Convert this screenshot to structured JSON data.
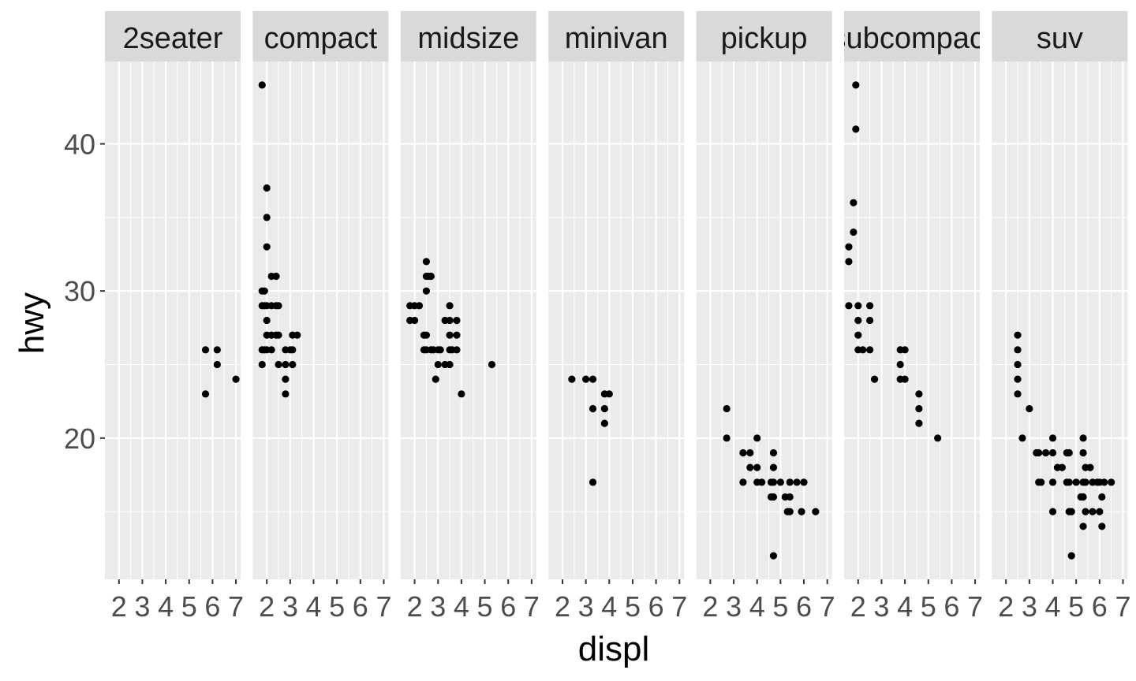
{
  "chart_data": {
    "type": "scatter",
    "xlabel": "displ",
    "ylabel": "hwy",
    "xlim": [
      1.4,
      7.2
    ],
    "ylim": [
      10.4,
      45.6
    ],
    "x_ticks": [
      2,
      3,
      4,
      5,
      6,
      7
    ],
    "y_ticks": [
      20,
      30,
      40
    ],
    "grid": true,
    "facets": [
      {
        "label": "2seater",
        "points": [
          [
            5.7,
            26
          ],
          [
            5.7,
            23
          ],
          [
            6.2,
            26
          ],
          [
            6.2,
            25
          ],
          [
            7.0,
            24
          ]
        ]
      },
      {
        "label": "compact",
        "points": [
          [
            1.8,
            44
          ],
          [
            1.8,
            29
          ],
          [
            1.8,
            30
          ],
          [
            1.8,
            26
          ],
          [
            1.9,
            26
          ],
          [
            1.9,
            29
          ],
          [
            1.9,
            30
          ],
          [
            2.0,
            29
          ],
          [
            2.0,
            28
          ],
          [
            2.0,
            27
          ],
          [
            2.0,
            26
          ],
          [
            2.0,
            33
          ],
          [
            2.0,
            35
          ],
          [
            2.0,
            37
          ],
          [
            2.2,
            31
          ],
          [
            2.2,
            29
          ],
          [
            2.2,
            27
          ],
          [
            2.2,
            26
          ],
          [
            2.4,
            31
          ],
          [
            2.4,
            29
          ],
          [
            2.4,
            27
          ],
          [
            2.5,
            29
          ],
          [
            2.5,
            27
          ],
          [
            2.5,
            25
          ],
          [
            2.8,
            26
          ],
          [
            2.8,
            25
          ],
          [
            2.8,
            24
          ],
          [
            2.8,
            23
          ],
          [
            3.0,
            26
          ],
          [
            3.1,
            27
          ],
          [
            3.1,
            26
          ],
          [
            3.1,
            25
          ],
          [
            3.3,
            27
          ],
          [
            1.8,
            25
          ]
        ]
      },
      {
        "label": "midsize",
        "points": [
          [
            1.8,
            29
          ],
          [
            1.8,
            28
          ],
          [
            2.0,
            29
          ],
          [
            2.0,
            28
          ],
          [
            2.2,
            29
          ],
          [
            2.4,
            27
          ],
          [
            2.4,
            26
          ],
          [
            2.5,
            27
          ],
          [
            2.5,
            26
          ],
          [
            2.5,
            31
          ],
          [
            2.5,
            30
          ],
          [
            2.5,
            32
          ],
          [
            2.6,
            31
          ],
          [
            2.7,
            31
          ],
          [
            2.7,
            26
          ],
          [
            2.8,
            26
          ],
          [
            2.9,
            24
          ],
          [
            3.0,
            26
          ],
          [
            3.0,
            25
          ],
          [
            3.1,
            26
          ],
          [
            3.3,
            25
          ],
          [
            3.3,
            28
          ],
          [
            3.5,
            28
          ],
          [
            3.5,
            29
          ],
          [
            3.5,
            27
          ],
          [
            3.5,
            26
          ],
          [
            3.5,
            25
          ],
          [
            3.6,
            26
          ],
          [
            3.8,
            28
          ],
          [
            3.8,
            27
          ],
          [
            3.8,
            26
          ],
          [
            4.0,
            23
          ],
          [
            5.3,
            25
          ]
        ]
      },
      {
        "label": "minivan",
        "points": [
          [
            2.4,
            24
          ],
          [
            3.0,
            24
          ],
          [
            3.3,
            24
          ],
          [
            3.3,
            22
          ],
          [
            3.3,
            17
          ],
          [
            3.8,
            23
          ],
          [
            3.8,
            22
          ],
          [
            3.8,
            21
          ],
          [
            4.0,
            23
          ]
        ]
      },
      {
        "label": "pickup",
        "points": [
          [
            2.7,
            22
          ],
          [
            2.7,
            20
          ],
          [
            3.4,
            19
          ],
          [
            3.4,
            17
          ],
          [
            3.7,
            19
          ],
          [
            3.7,
            18
          ],
          [
            4.0,
            20
          ],
          [
            4.0,
            18
          ],
          [
            4.0,
            17
          ],
          [
            4.2,
            17
          ],
          [
            4.6,
            17
          ],
          [
            4.7,
            19
          ],
          [
            4.7,
            17
          ],
          [
            4.7,
            16
          ],
          [
            4.7,
            12
          ],
          [
            5.2,
            16
          ],
          [
            5.4,
            17
          ],
          [
            5.4,
            16
          ],
          [
            5.4,
            15
          ],
          [
            5.7,
            17
          ],
          [
            5.9,
            15
          ],
          [
            4.6,
            16
          ],
          [
            4.7,
            18
          ],
          [
            5.0,
            17
          ],
          [
            5.3,
            15
          ],
          [
            6.0,
            17
          ],
          [
            6.5,
            15
          ]
        ]
      },
      {
        "label": "subcompact",
        "points": [
          [
            1.6,
            33
          ],
          [
            1.6,
            32
          ],
          [
            1.6,
            29
          ],
          [
            1.8,
            34
          ],
          [
            1.8,
            36
          ],
          [
            1.9,
            41
          ],
          [
            1.9,
            44
          ],
          [
            2.0,
            29
          ],
          [
            2.0,
            27
          ],
          [
            2.0,
            26
          ],
          [
            2.5,
            29
          ],
          [
            2.5,
            28
          ],
          [
            2.5,
            26
          ],
          [
            2.0,
            28
          ],
          [
            2.2,
            26
          ],
          [
            2.7,
            24
          ],
          [
            3.8,
            26
          ],
          [
            3.8,
            25
          ],
          [
            4.0,
            26
          ],
          [
            4.0,
            24
          ],
          [
            4.6,
            23
          ],
          [
            4.6,
            22
          ],
          [
            4.6,
            21
          ],
          [
            5.4,
            20
          ],
          [
            3.8,
            24
          ]
        ]
      },
      {
        "label": "suv",
        "points": [
          [
            2.5,
            27
          ],
          [
            2.5,
            26
          ],
          [
            2.5,
            25
          ],
          [
            2.5,
            24
          ],
          [
            2.5,
            23
          ],
          [
            2.7,
            20
          ],
          [
            3.0,
            22
          ],
          [
            3.3,
            19
          ],
          [
            3.4,
            19
          ],
          [
            3.4,
            17
          ],
          [
            3.5,
            17
          ],
          [
            3.7,
            19
          ],
          [
            4.0,
            20
          ],
          [
            4.0,
            19
          ],
          [
            4.0,
            17
          ],
          [
            4.0,
            15
          ],
          [
            4.2,
            18
          ],
          [
            4.4,
            18
          ],
          [
            4.6,
            19
          ],
          [
            4.7,
            19
          ],
          [
            4.7,
            17
          ],
          [
            4.7,
            15
          ],
          [
            4.6,
            17
          ],
          [
            4.8,
            15
          ],
          [
            4.8,
            12
          ],
          [
            5.0,
            17
          ],
          [
            5.2,
            16
          ],
          [
            5.3,
            20
          ],
          [
            5.3,
            19
          ],
          [
            5.3,
            17
          ],
          [
            5.3,
            16
          ],
          [
            5.3,
            14
          ],
          [
            5.4,
            18
          ],
          [
            5.4,
            17
          ],
          [
            5.6,
            18
          ],
          [
            5.7,
            17
          ],
          [
            5.7,
            15
          ],
          [
            5.9,
            17
          ],
          [
            6.0,
            17
          ],
          [
            6.0,
            15
          ],
          [
            6.1,
            14
          ],
          [
            6.2,
            17
          ],
          [
            6.5,
            17
          ],
          [
            6.1,
            16
          ],
          [
            5.4,
            15
          ]
        ]
      }
    ]
  },
  "colors": {
    "panel_bg": "#ebebeb",
    "strip_bg": "#d9d9d9",
    "grid": "#ffffff",
    "point": "#000000",
    "tick": "#333333"
  }
}
